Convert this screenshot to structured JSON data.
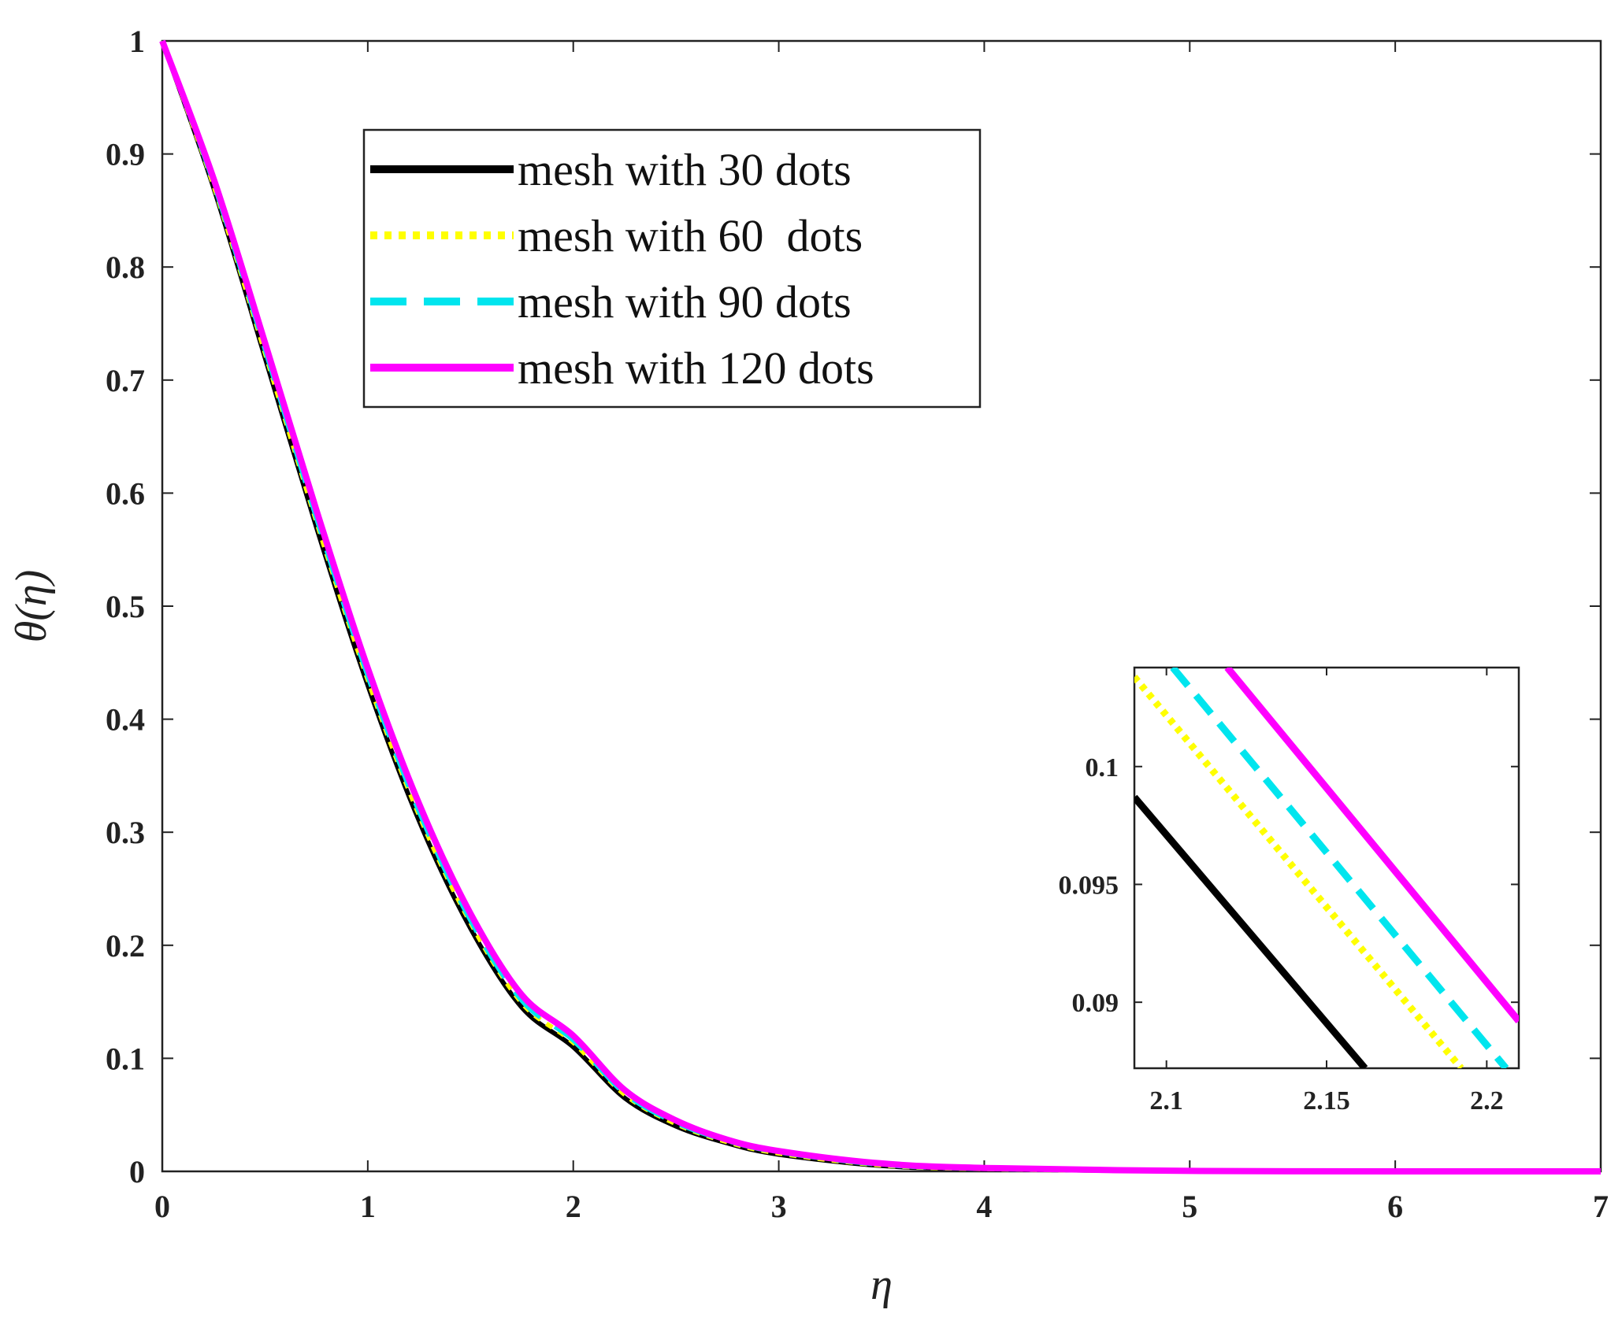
{
  "chart_data": [
    {
      "id": "main",
      "type": "line",
      "xlabel": "η",
      "ylabel": "θ(η)",
      "xlim": [
        0,
        7
      ],
      "ylim": [
        0,
        1
      ],
      "xticks": [
        0,
        1,
        2,
        3,
        4,
        5,
        6,
        7
      ],
      "xtick_labels": [
        "0",
        "1",
        "2",
        "3",
        "4",
        "5",
        "6",
        "7"
      ],
      "yticks": [
        0,
        0.1,
        0.2,
        0.3,
        0.4,
        0.5,
        0.6,
        0.7,
        0.8,
        0.9,
        1
      ],
      "ytick_labels": [
        "0",
        "0.1",
        "0.2",
        "0.3",
        "0.4",
        "0.5",
        "0.6",
        "0.7",
        "0.8",
        "0.9",
        "1"
      ],
      "grid": false,
      "legend_position": "top-left-center",
      "series": [
        {
          "name": "mesh with 30 dots",
          "color": "#000000",
          "style": "solid",
          "x": [
            0,
            0.25,
            0.5,
            0.75,
            1,
            1.25,
            1.5,
            1.75,
            2,
            2.25,
            2.5,
            2.75,
            3,
            3.5,
            4,
            5,
            6,
            7
          ],
          "y": [
            1,
            0.87,
            0.72,
            0.57,
            0.43,
            0.31,
            0.215,
            0.145,
            0.11,
            0.065,
            0.04,
            0.025,
            0.015,
            0.005,
            0.002,
            0.0002,
            0,
            0
          ]
        },
        {
          "name": "mesh with 60  dots",
          "color": "#ffff00",
          "style": "dotted",
          "x": [
            0,
            0.25,
            0.5,
            0.75,
            1,
            1.25,
            1.5,
            1.75,
            2,
            2.25,
            2.5,
            2.75,
            3,
            3.5,
            4,
            5,
            6,
            7
          ],
          "y": [
            1,
            0.872,
            0.724,
            0.575,
            0.435,
            0.315,
            0.22,
            0.149,
            0.114,
            0.068,
            0.042,
            0.026,
            0.016,
            0.0055,
            0.0022,
            0.0002,
            0,
            0
          ]
        },
        {
          "name": "mesh with 90 dots",
          "color": "#00e5ee",
          "style": "dashed",
          "x": [
            0,
            0.25,
            0.5,
            0.75,
            1,
            1.25,
            1.5,
            1.75,
            2,
            2.25,
            2.5,
            2.75,
            3,
            3.5,
            4,
            5,
            6,
            7
          ],
          "y": [
            1,
            0.874,
            0.727,
            0.578,
            0.438,
            0.318,
            0.222,
            0.151,
            0.116,
            0.069,
            0.043,
            0.027,
            0.017,
            0.006,
            0.0024,
            0.0003,
            0,
            0
          ]
        },
        {
          "name": "mesh with 120 dots",
          "color": "#ff00ff",
          "style": "solid",
          "x": [
            0,
            0.25,
            0.5,
            0.75,
            1,
            1.25,
            1.5,
            1.75,
            2,
            2.25,
            2.5,
            2.75,
            3,
            3.5,
            4,
            5,
            6,
            7
          ],
          "y": [
            1,
            0.878,
            0.733,
            0.585,
            0.445,
            0.325,
            0.228,
            0.156,
            0.12,
            0.072,
            0.045,
            0.028,
            0.018,
            0.007,
            0.003,
            0.0004,
            0,
            0
          ]
        }
      ]
    },
    {
      "id": "inset",
      "type": "line",
      "xlim": [
        2.09,
        2.21
      ],
      "ylim": [
        0.0872,
        0.1042
      ],
      "xticks": [
        2.1,
        2.15,
        2.2
      ],
      "xtick_labels": [
        "2.1",
        "2.15",
        "2.2"
      ],
      "yticks": [
        0.09,
        0.095,
        0.1
      ],
      "ytick_labels": [
        "0.09",
        "0.095",
        "0.1"
      ],
      "grid": false,
      "series": [
        {
          "name": "mesh with 30 dots",
          "color": "#000000",
          "style": "solid",
          "x": [
            2.09,
            2.162
          ],
          "y": [
            0.0987,
            0.0872
          ]
        },
        {
          "name": "mesh with 60  dots",
          "color": "#ffff00",
          "style": "dotted",
          "x": [
            2.09,
            2.192
          ],
          "y": [
            0.1038,
            0.0872
          ]
        },
        {
          "name": "mesh with 90 dots",
          "color": "#00e5ee",
          "style": "dashed",
          "x": [
            2.102,
            2.206
          ],
          "y": [
            0.1042,
            0.0872
          ]
        },
        {
          "name": "mesh with 120 dots",
          "color": "#ff00ff",
          "style": "solid",
          "x": [
            2.119,
            2.21
          ],
          "y": [
            0.1042,
            0.0892
          ]
        }
      ]
    }
  ]
}
